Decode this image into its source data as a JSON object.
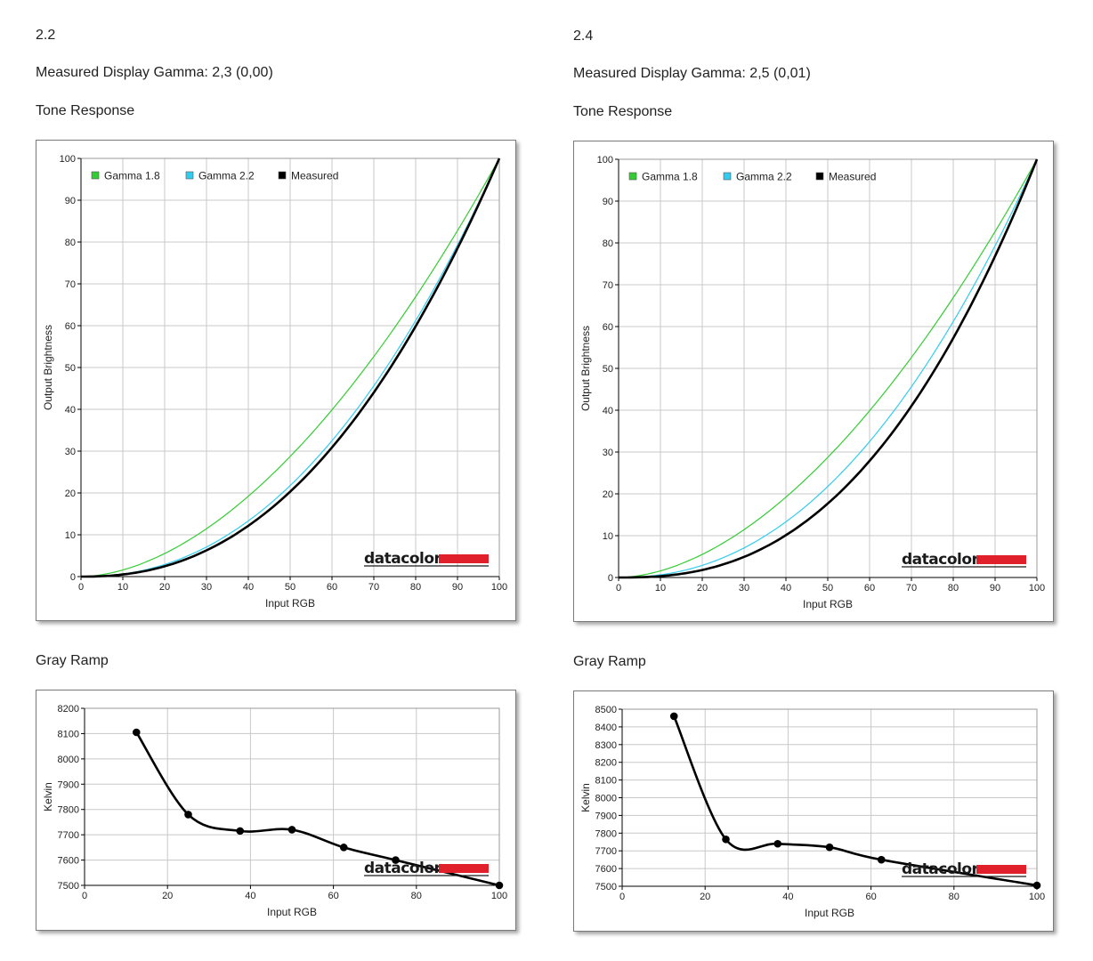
{
  "left": {
    "heading": "2.2",
    "measured": "Measured Display Gamma: 2,3 (0,00)",
    "tone_title": "Tone Response",
    "ramp_title": "Gray Ramp"
  },
  "right": {
    "heading": "2.4",
    "measured": "Measured Display Gamma: 2,5 (0,01)",
    "tone_title": "Tone Response",
    "ramp_title": "Gray Ramp"
  },
  "logo_text": "datacolor",
  "colors": {
    "gamma18": "#33cc33",
    "gamma22": "#33ccee",
    "measured": "#000000",
    "logo_bar": "#e0202a"
  },
  "chart_data": [
    {
      "type": "line",
      "xlabel": "Input RGB",
      "ylabel": "Output Brightness",
      "xlim": [
        0,
        100
      ],
      "ylim": [
        0,
        100
      ],
      "xticks": [
        0,
        10,
        20,
        30,
        40,
        50,
        60,
        70,
        80,
        90,
        100
      ],
      "yticks": [
        0,
        10,
        20,
        30,
        40,
        50,
        60,
        70,
        80,
        90,
        100
      ],
      "grid": true,
      "legend": "top-left",
      "series": [
        {
          "name": "Gamma 1.8",
          "color": "#33cc33",
          "gamma": 1.8
        },
        {
          "name": "Gamma 2.2",
          "color": "#33ccee",
          "gamma": 2.2
        },
        {
          "name": "Measured",
          "color": "#000000",
          "gamma": 2.3
        }
      ]
    },
    {
      "type": "line",
      "xlabel": "Input RGB",
      "ylabel": "Kelvin",
      "xlim": [
        0,
        100
      ],
      "ylim": [
        7500,
        8200
      ],
      "xticks": [
        0,
        20,
        40,
        60,
        80,
        100
      ],
      "yticks": [
        7500,
        7600,
        7700,
        7800,
        7900,
        8000,
        8100,
        8200
      ],
      "grid": true,
      "series": [
        {
          "x": [
            12.5,
            25,
            37.5,
            50,
            62.5,
            75,
            100
          ],
          "y": [
            8105,
            7780,
            7715,
            7720,
            7650,
            7600,
            7500
          ]
        }
      ]
    },
    {
      "type": "line",
      "xlabel": "Input RGB",
      "ylabel": "Output Brightness",
      "xlim": [
        0,
        100
      ],
      "ylim": [
        0,
        100
      ],
      "xticks": [
        0,
        10,
        20,
        30,
        40,
        50,
        60,
        70,
        80,
        90,
        100
      ],
      "yticks": [
        0,
        10,
        20,
        30,
        40,
        50,
        60,
        70,
        80,
        90,
        100
      ],
      "grid": true,
      "legend": "top-left",
      "series": [
        {
          "name": "Gamma 1.8",
          "color": "#33cc33",
          "gamma": 1.8
        },
        {
          "name": "Gamma 2.2",
          "color": "#33ccee",
          "gamma": 2.2
        },
        {
          "name": "Measured",
          "color": "#000000",
          "gamma": 2.5
        }
      ]
    },
    {
      "type": "line",
      "xlabel": "Input RGB",
      "ylabel": "Kelvin",
      "xlim": [
        0,
        100
      ],
      "ylim": [
        7500,
        8500
      ],
      "xticks": [
        0,
        20,
        40,
        60,
        80,
        100
      ],
      "yticks": [
        7500,
        7600,
        7700,
        7800,
        7900,
        8000,
        8100,
        8200,
        8300,
        8400,
        8500
      ],
      "grid": true,
      "series": [
        {
          "x": [
            12.5,
            25,
            37.5,
            50,
            62.5,
            100
          ],
          "y": [
            8460,
            7765,
            7740,
            7720,
            7650,
            7505
          ]
        }
      ]
    }
  ]
}
